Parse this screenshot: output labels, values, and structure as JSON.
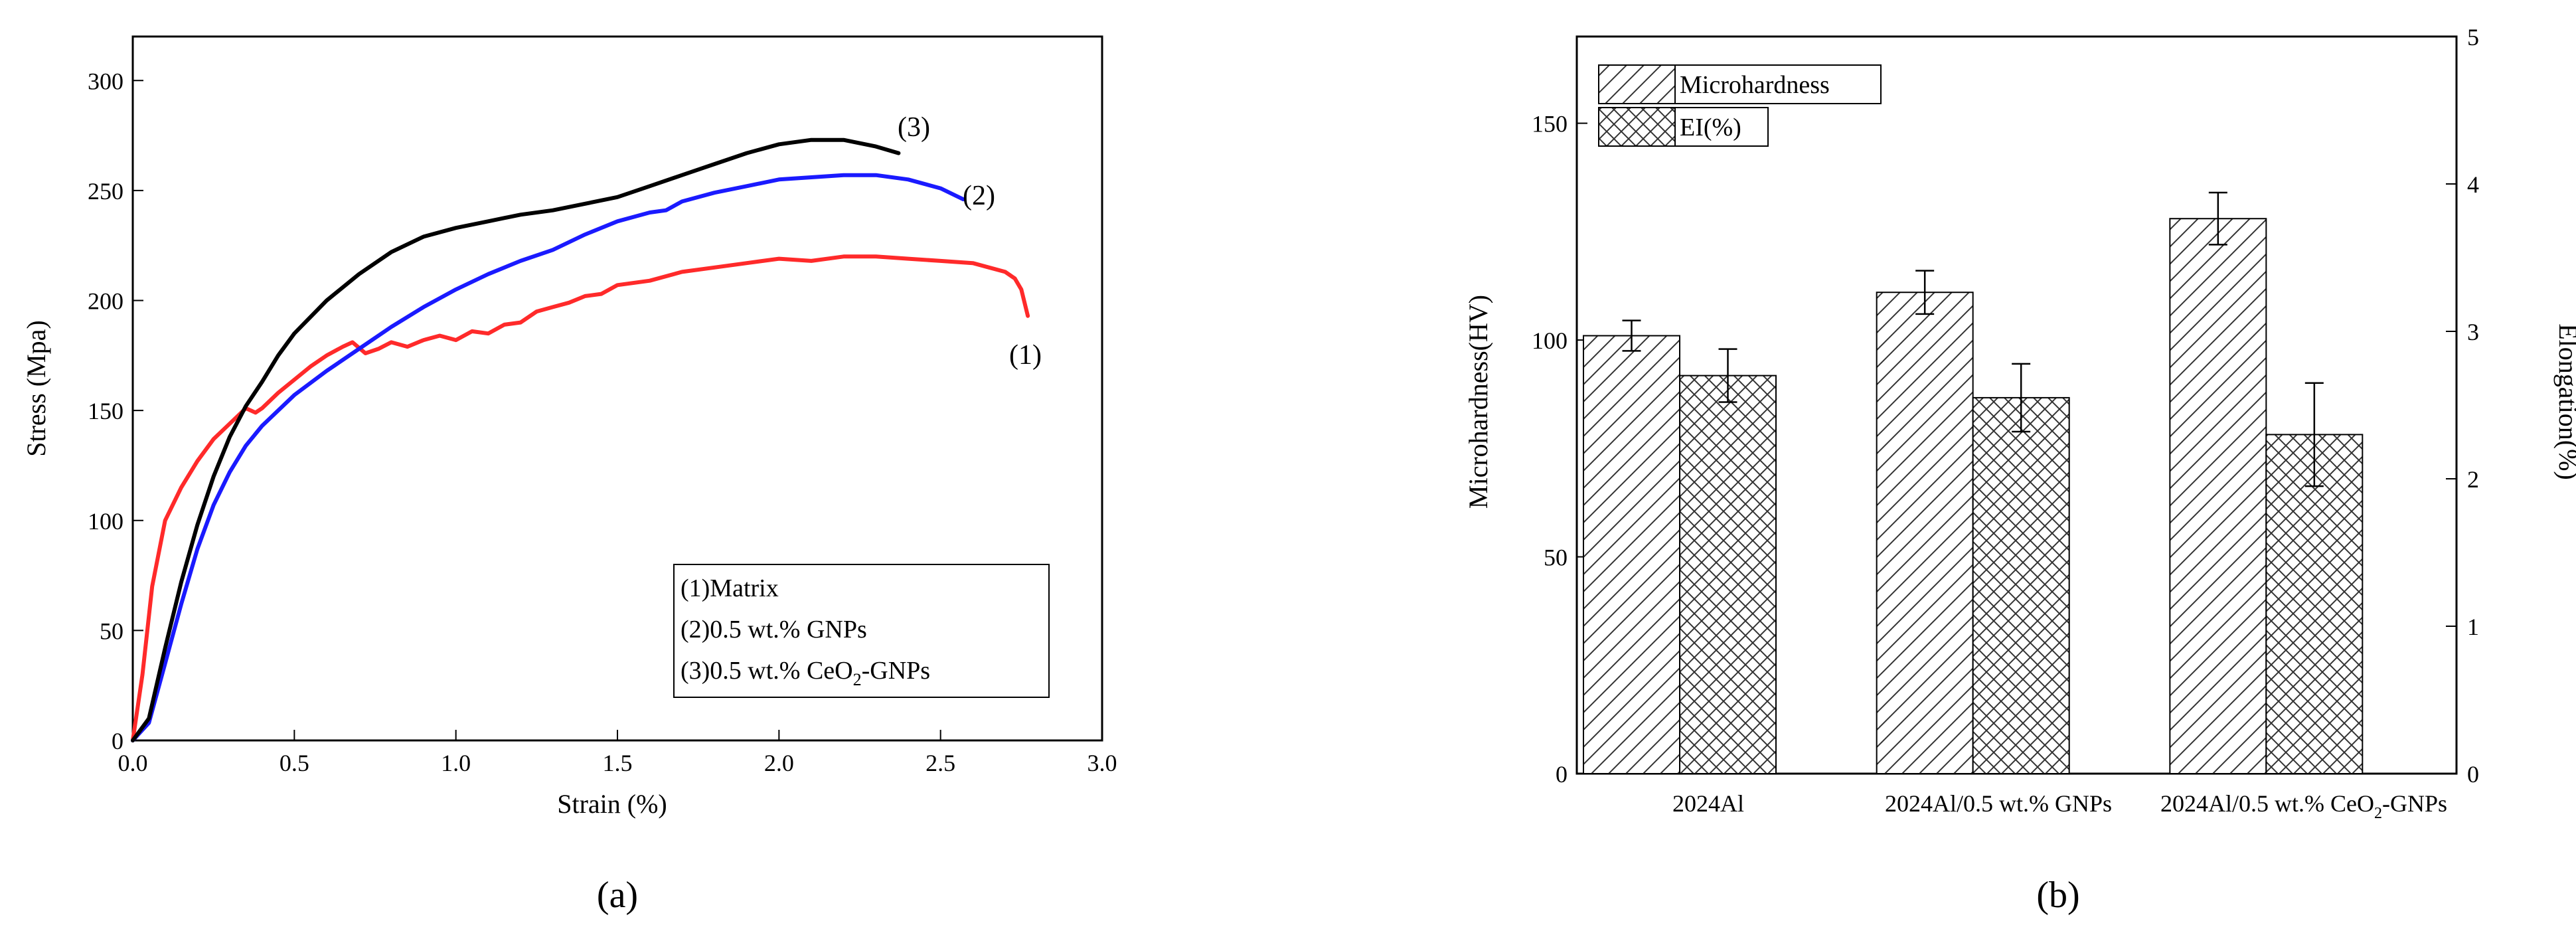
{
  "chart_data": [
    {
      "type": "line",
      "title": "",
      "panel_label": "(a)",
      "xlabel": "Strain (%)",
      "ylabel": "Stress (Mpa)",
      "xlim": [
        0,
        3.0
      ],
      "ylim": [
        0,
        320
      ],
      "xticks": [
        "0.0",
        "0.5",
        "1.0",
        "1.5",
        "2.0",
        "2.5",
        "3.0"
      ],
      "yticks": [
        "0",
        "50",
        "100",
        "150",
        "200",
        "250",
        "300"
      ],
      "grid": false,
      "legend_position": "bottom-right",
      "legend": [
        "(1)Matrix",
        "(2)0.5 wt.% GNPs",
        "(3)0.5 wt.% CeO"
      ],
      "legend_sub": "2",
      "legend_suffix": "-GNPs",
      "series": [
        {
          "name": "(1)Matrix",
          "label": "(1)",
          "color": "#ff2a2a",
          "x": [
            0.0,
            0.03,
            0.06,
            0.1,
            0.15,
            0.2,
            0.25,
            0.3,
            0.35,
            0.38,
            0.4,
            0.45,
            0.5,
            0.55,
            0.6,
            0.65,
            0.68,
            0.72,
            0.76,
            0.8,
            0.85,
            0.9,
            0.95,
            1.0,
            1.05,
            1.1,
            1.15,
            1.2,
            1.25,
            1.3,
            1.35,
            1.4,
            1.45,
            1.5,
            1.6,
            1.7,
            1.8,
            1.9,
            2.0,
            2.1,
            2.2,
            2.3,
            2.4,
            2.5,
            2.6,
            2.65,
            2.7,
            2.73,
            2.75,
            2.77
          ],
          "values": [
            0,
            30,
            70,
            100,
            115,
            127,
            137,
            144,
            151,
            149,
            151,
            158,
            164,
            170,
            175,
            179,
            181,
            176,
            178,
            181,
            179,
            182,
            184,
            182,
            186,
            185,
            189,
            190,
            195,
            197,
            199,
            202,
            203,
            207,
            209,
            213,
            215,
            217,
            219,
            218,
            220,
            220,
            219,
            218,
            217,
            215,
            213,
            210,
            205,
            193
          ]
        },
        {
          "name": "(2)0.5 wt.% GNPs",
          "label": "(2)",
          "color": "#1a1aff",
          "x": [
            0.0,
            0.05,
            0.1,
            0.15,
            0.2,
            0.25,
            0.3,
            0.35,
            0.4,
            0.5,
            0.6,
            0.7,
            0.8,
            0.9,
            1.0,
            1.1,
            1.2,
            1.3,
            1.4,
            1.5,
            1.6,
            1.65,
            1.7,
            1.8,
            1.9,
            2.0,
            2.1,
            2.2,
            2.3,
            2.4,
            2.5,
            2.57
          ],
          "values": [
            0,
            8,
            35,
            62,
            87,
            107,
            122,
            134,
            143,
            157,
            168,
            178,
            188,
            197,
            205,
            212,
            218,
            223,
            230,
            236,
            240,
            241,
            245,
            249,
            252,
            255,
            256,
            257,
            257,
            255,
            251,
            246
          ]
        },
        {
          "name": "(3)0.5 wt.% CeO2-GNPs",
          "label": "(3)",
          "color": "#000000",
          "x": [
            0.0,
            0.05,
            0.1,
            0.15,
            0.2,
            0.25,
            0.3,
            0.35,
            0.4,
            0.45,
            0.5,
            0.6,
            0.7,
            0.8,
            0.9,
            1.0,
            1.1,
            1.2,
            1.3,
            1.4,
            1.5,
            1.6,
            1.7,
            1.8,
            1.9,
            2.0,
            2.1,
            2.2,
            2.3,
            2.37
          ],
          "values": [
            0,
            10,
            42,
            72,
            98,
            120,
            138,
            152,
            163,
            175,
            185,
            200,
            212,
            222,
            229,
            233,
            236,
            239,
            241,
            244,
            247,
            252,
            257,
            262,
            267,
            271,
            273,
            273,
            270,
            267
          ]
        }
      ]
    },
    {
      "type": "bar",
      "title": "",
      "panel_label": "(b)",
      "categories": [
        "2024Al",
        "2024Al/0.5 wt.% GNPs",
        "2024Al/0.5 wt.% CeO"
      ],
      "category_sub": "2",
      "category_suffix": "-GNPs",
      "xlabel": "",
      "ylabel": "Microhardness(HV)",
      "y2label": "Elongation(%)",
      "ylim": [
        0,
        170
      ],
      "y2lim": [
        0,
        5
      ],
      "yticks": [
        "0",
        "50",
        "100",
        "150"
      ],
      "y2ticks": [
        "0",
        "1",
        "2",
        "3",
        "4",
        "5"
      ],
      "grid": false,
      "legend_position": "top-left",
      "series": [
        {
          "name": "Microhardness",
          "axis": "left",
          "pattern": "diagonal hatch",
          "values": [
            101,
            111,
            128
          ],
          "errors": [
            3.5,
            5,
            6
          ]
        },
        {
          "name": "EI(%)",
          "axis": "right",
          "pattern": "cross hatch",
          "values": [
            2.7,
            2.55,
            2.3
          ],
          "errors": [
            0.18,
            0.23,
            0.35
          ]
        }
      ]
    }
  ]
}
